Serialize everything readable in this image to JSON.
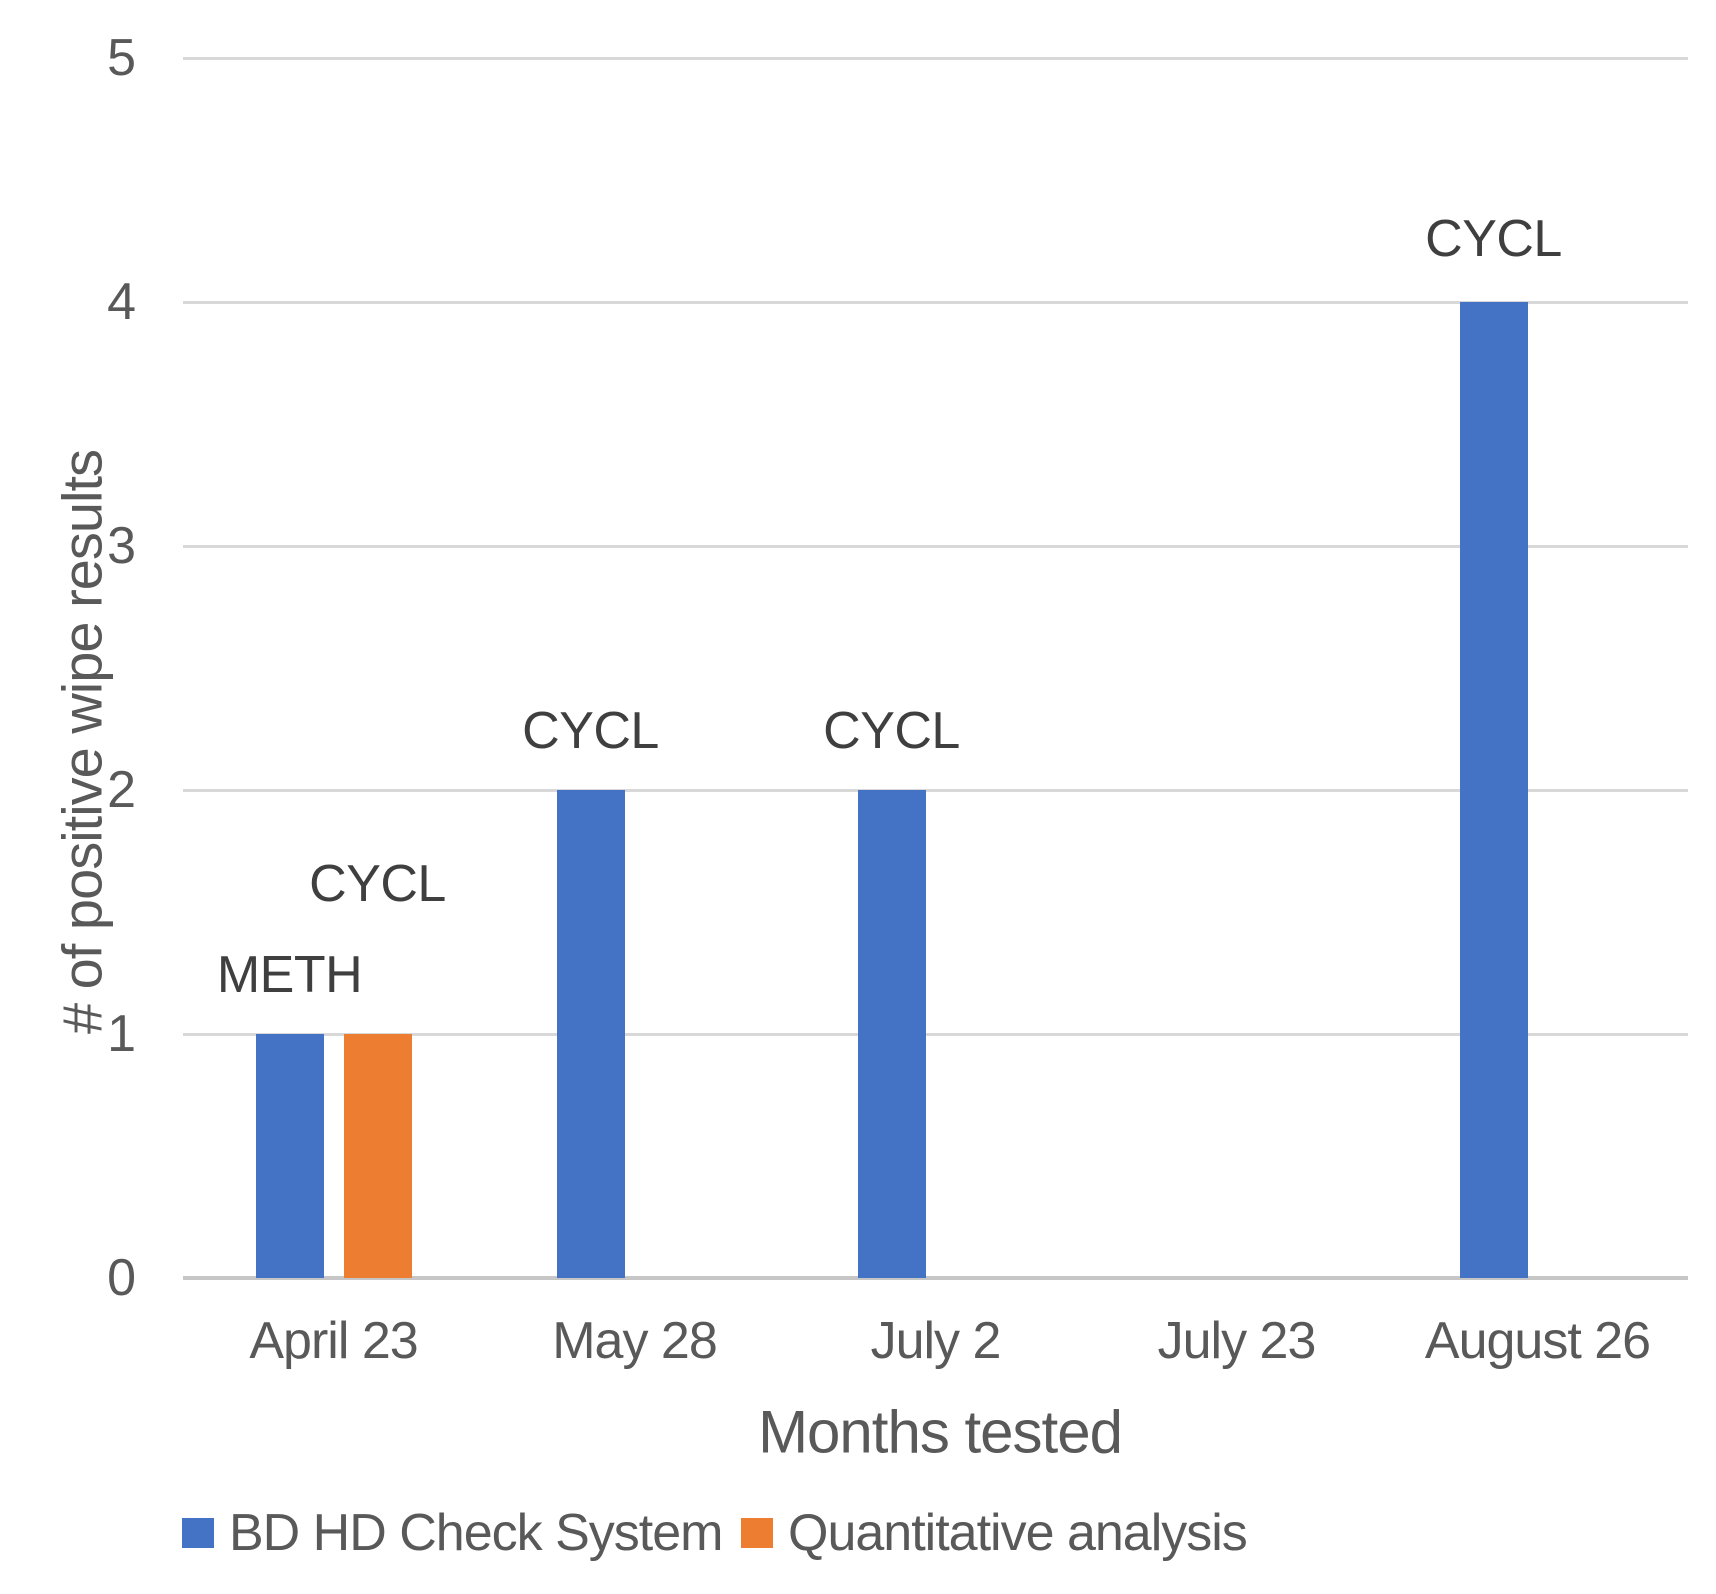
{
  "chart_data": {
    "type": "bar",
    "title": "",
    "categories": [
      "April 23",
      "May 28",
      "July 2",
      "July 23",
      "August 26"
    ],
    "series": [
      {
        "name": "BD HD Check System",
        "color": "#4472C4",
        "values": [
          1,
          2,
          2,
          0,
          4
        ],
        "point_labels": [
          "METH",
          "CYCL",
          "CYCL",
          "",
          "CYCL"
        ],
        "point_label_gaps": [
          36,
          36,
          36,
          0,
          40
        ]
      },
      {
        "name": "Quantitative analysis",
        "color": "#ED7D31",
        "values": [
          1,
          0,
          0,
          0,
          0
        ],
        "point_labels": [
          "CYCL",
          "",
          "",
          "",
          ""
        ],
        "point_label_gaps": [
          127,
          0,
          0,
          0,
          0
        ]
      }
    ],
    "xlabel": "Months tested",
    "ylabel": "# of positive wipe results",
    "ylim": [
      0,
      5
    ],
    "yticks": [
      0,
      1,
      2,
      3,
      4,
      5
    ],
    "grid": true,
    "legend_position": "bottom"
  },
  "styles": {
    "background": "#ffffff",
    "grid_color": "#d8d8d8",
    "zero_line_color": "#c6c6c6",
    "tick_text_color": "#595959",
    "bar_label_color": "#3f3f3f"
  }
}
